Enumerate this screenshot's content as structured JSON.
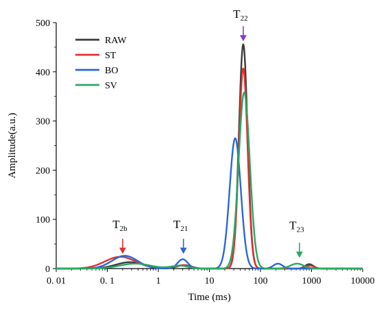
{
  "chart_data": {
    "type": "line",
    "xlabel": "Time (ms)",
    "ylabel": "Amplitude(a.u.)",
    "xscale": "log",
    "xlim": [
      0.01,
      10000
    ],
    "ylim": [
      0,
      500
    ],
    "xticks": [
      0.01,
      0.1,
      1,
      10,
      100,
      1000,
      10000
    ],
    "xtick_labels": [
      "0. 01",
      "0. 1",
      "1",
      "10",
      "100",
      "1000",
      "10000"
    ],
    "yticks": [
      0,
      100,
      200,
      300,
      400,
      500
    ],
    "ytick_labels": [
      "0",
      "100",
      "200",
      "300",
      "400",
      "500"
    ],
    "legend_position": "top-left",
    "series": [
      {
        "name": "RAW",
        "color": "#3a3a3a",
        "peaks": [
          {
            "center": 0.28,
            "amplitude": 13,
            "width": 0.28
          },
          {
            "center": 3.2,
            "amplitude": 7,
            "width": 0.14
          },
          {
            "center": 46,
            "amplitude": 456,
            "width": 0.085
          },
          {
            "center": 900,
            "amplitude": 9,
            "width": 0.08
          }
        ]
      },
      {
        "name": "ST",
        "color": "#e03030",
        "peaks": [
          {
            "center": 0.18,
            "amplitude": 24,
            "width": 0.3
          },
          {
            "center": 3.0,
            "amplitude": 7,
            "width": 0.14
          },
          {
            "center": 46,
            "amplitude": 407,
            "width": 0.085
          },
          {
            "center": 920,
            "amplitude": 6,
            "width": 0.08
          }
        ]
      },
      {
        "name": "BO",
        "color": "#2a66d8",
        "peaks": [
          {
            "center": 0.22,
            "amplitude": 26,
            "width": 0.25
          },
          {
            "center": 3.0,
            "amplitude": 19,
            "width": 0.1
          },
          {
            "center": 32,
            "amplitude": 265,
            "width": 0.11
          },
          {
            "center": 220,
            "amplitude": 10,
            "width": 0.09
          }
        ]
      },
      {
        "name": "SV",
        "color": "#2aa860",
        "peaks": [
          {
            "center": 0.35,
            "amplitude": 10,
            "width": 0.3
          },
          {
            "center": 2.6,
            "amplitude": 6,
            "width": 0.16
          },
          {
            "center": 48,
            "amplitude": 358,
            "width": 0.11
          },
          {
            "center": 520,
            "amplitude": 10,
            "width": 0.13
          }
        ]
      }
    ],
    "annotations": [
      {
        "main": "T",
        "sub": "2b",
        "x": 0.2,
        "arrow_tip_y": 30,
        "label_y": 82,
        "color": "#e03030"
      },
      {
        "main": "T",
        "sub": "21",
        "x": 3.1,
        "arrow_tip_y": 30,
        "label_y": 82,
        "color": "#2a66d8"
      },
      {
        "main": "T",
        "sub": "22",
        "x": 46,
        "arrow_tip_y": 462,
        "label_y": 510,
        "color": "#8a3ad0"
      },
      {
        "main": "T",
        "sub": "23",
        "x": 580,
        "arrow_tip_y": 22,
        "label_y": 80,
        "color": "#2aa860"
      }
    ]
  }
}
